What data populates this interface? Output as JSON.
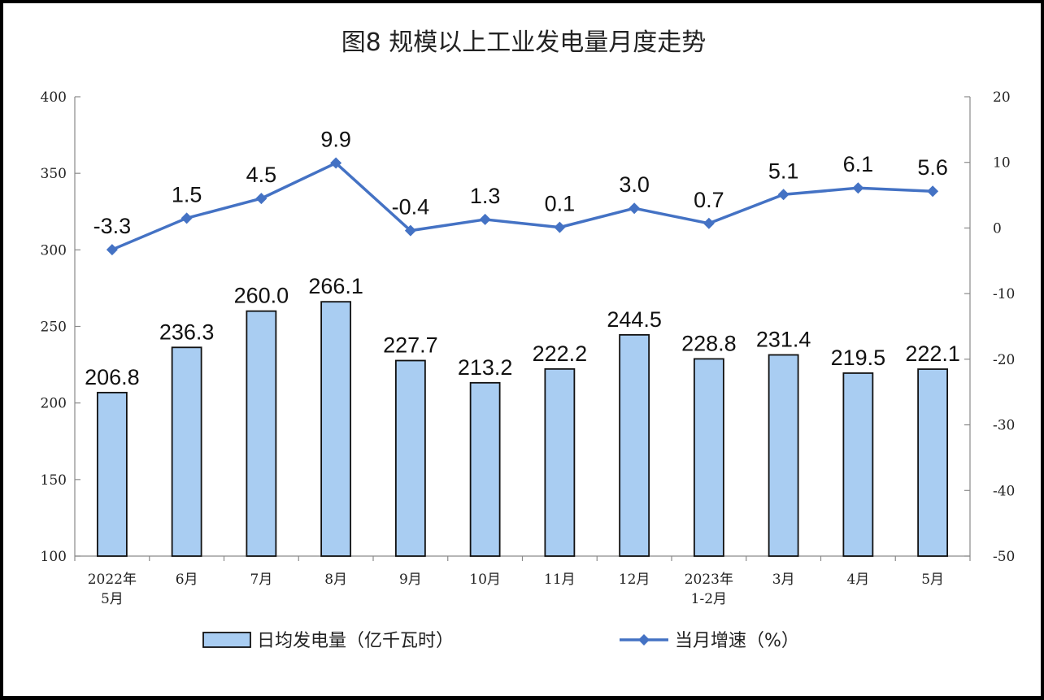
{
  "chart_data": {
    "type": "bar",
    "title": "图8  规模以上工业发电量月度走势",
    "categories": [
      [
        "2022年",
        "5月"
      ],
      [
        "6月"
      ],
      [
        "7月"
      ],
      [
        "8月"
      ],
      [
        "9月"
      ],
      [
        "10月"
      ],
      [
        "11月"
      ],
      [
        "12月"
      ],
      [
        "2023年",
        "1-2月"
      ],
      [
        "3月"
      ],
      [
        "4月"
      ],
      [
        "5月"
      ]
    ],
    "series": [
      {
        "name": "日均发电量（亿千瓦时）",
        "type": "bar",
        "axis": "left",
        "values": [
          206.8,
          236.3,
          260.0,
          266.1,
          227.7,
          213.2,
          222.2,
          244.5,
          228.8,
          231.4,
          219.5,
          222.1
        ],
        "labels": [
          "206.8",
          "236.3",
          "260.0",
          "266.1",
          "227.7",
          "213.2",
          "222.2",
          "244.5",
          "228.8",
          "231.4",
          "219.5",
          "222.1"
        ],
        "color": "#a9cdf2"
      },
      {
        "name": "当月增速（%）",
        "type": "line",
        "axis": "right",
        "values": [
          -3.3,
          1.5,
          4.5,
          9.9,
          -0.4,
          1.3,
          0.1,
          3.0,
          0.7,
          5.1,
          6.1,
          5.6
        ],
        "labels": [
          "-3.3",
          "1.5",
          "4.5",
          "9.9",
          "-0.4",
          "1.3",
          "0.1",
          "3.0",
          "0.7",
          "5.1",
          "6.1",
          "5.6"
        ],
        "color": "#4472c4"
      }
    ],
    "y_left": {
      "ylim": [
        100,
        400
      ],
      "ticks": [
        "100",
        "150",
        "200",
        "250",
        "300",
        "350",
        "400"
      ]
    },
    "y_right": {
      "ylim": [
        -50,
        20
      ],
      "ticks": [
        "-50",
        "-40",
        "-30",
        "-20",
        "-10",
        "0",
        "10",
        "20"
      ]
    },
    "legend": {
      "placement": "bottom",
      "items": [
        {
          "label": "日均发电量（亿千瓦时）",
          "kind": "bar"
        },
        {
          "label": "当月增速（%）",
          "kind": "line"
        }
      ]
    },
    "grid": false
  }
}
